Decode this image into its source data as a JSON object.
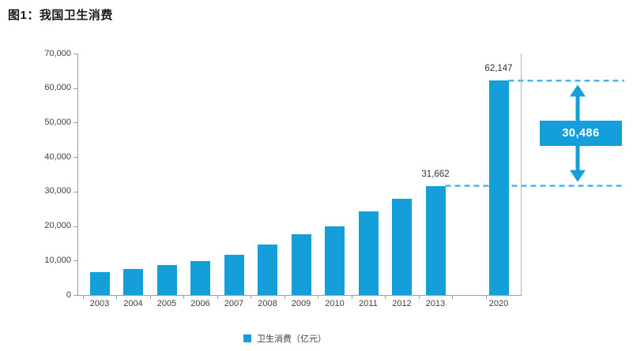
{
  "title": "图1：我国卫生消费",
  "chart_data": {
    "type": "bar",
    "title": "图1：我国卫生消费",
    "categories": [
      "2003",
      "2004",
      "2005",
      "2006",
      "2007",
      "2008",
      "2009",
      "2010",
      "2011",
      "2012",
      "2013",
      "2020"
    ],
    "values": [
      6584,
      7590,
      8660,
      9843,
      11574,
      14535,
      17542,
      19980,
      24346,
      27847,
      31662,
      62147
    ],
    "series_name": "卫生消费（亿元）",
    "ylim": [
      0,
      70000
    ],
    "ytick_step": 10000,
    "ytick_labels": [
      "0",
      "10,000",
      "20,000",
      "30,000",
      "40,000",
      "50,000",
      "60,000",
      "70,000"
    ],
    "grid": false,
    "legend_position": "bottom",
    "point_labels": [
      {
        "category": "2013",
        "text": "31,662"
      },
      {
        "category": "2020",
        "text": "62,147"
      }
    ],
    "annotation": {
      "label": "30,486",
      "from_value": 31662,
      "to_value": 62147
    }
  },
  "legend": {
    "label": "卫生消费（亿元）"
  },
  "colors": {
    "bar": "#149FDA",
    "dashed_line": "#41B2E4",
    "annotation_box": "#149FDA",
    "annotation_text": "#FFFFFF",
    "axis": "#9D9D9D",
    "tick_label": "#3F3F3F",
    "title_text": "#1A1A1A"
  }
}
